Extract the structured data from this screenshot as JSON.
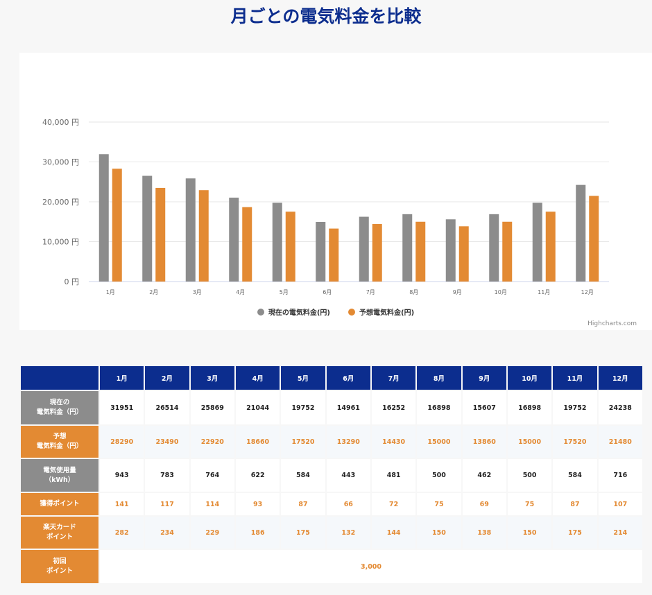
{
  "page": {
    "title": "月ごとの電気料金を比較"
  },
  "chart_data": {
    "type": "bar",
    "categories": [
      "1月",
      "2月",
      "3月",
      "4月",
      "5月",
      "6月",
      "7月",
      "8月",
      "9月",
      "10月",
      "11月",
      "12月"
    ],
    "series": [
      {
        "name": "現在の電気料金(円)",
        "color": "#8c8c8c",
        "values": [
          31951,
          26514,
          25869,
          21044,
          19752,
          14961,
          16252,
          16898,
          15607,
          16898,
          19752,
          24238
        ]
      },
      {
        "name": "予想電気料金(円)",
        "color": "#e38a33",
        "values": [
          28290,
          23490,
          22920,
          18660,
          17520,
          13290,
          14430,
          15000,
          13860,
          15000,
          17520,
          21480
        ]
      }
    ],
    "y_ticks": [
      "0 円",
      "10,000 円",
      "20,000 円",
      "30,000 円",
      "40,000 円"
    ],
    "ylim": [
      0,
      40000
    ],
    "grid": true,
    "legend_position": "bottom"
  },
  "credits": "Highcharts.com",
  "table": {
    "headers": [
      "1月",
      "2月",
      "3月",
      "4月",
      "5月",
      "6月",
      "7月",
      "8月",
      "9月",
      "10月",
      "11月",
      "12月"
    ],
    "rows": {
      "current": {
        "label_l1": "現在の",
        "label_l2": "電気料金（円）",
        "values": [
          "31951",
          "26514",
          "25869",
          "21044",
          "19752",
          "14961",
          "16252",
          "16898",
          "15607",
          "16898",
          "19752",
          "24238"
        ]
      },
      "forecast": {
        "label_l1": "予想",
        "label_l2": "電気料金（円）",
        "values": [
          "28290",
          "23490",
          "22920",
          "18660",
          "17520",
          "13290",
          "14430",
          "15000",
          "13860",
          "15000",
          "17520",
          "21480"
        ]
      },
      "usage": {
        "label_l1": "電気使用量",
        "label_l2": "（kWh）",
        "values": [
          "943",
          "783",
          "764",
          "622",
          "584",
          "443",
          "481",
          "500",
          "462",
          "500",
          "584",
          "716"
        ]
      },
      "points": {
        "label_l1": "獲得ポイント",
        "values": [
          "141",
          "117",
          "114",
          "93",
          "87",
          "66",
          "72",
          "75",
          "69",
          "75",
          "87",
          "107"
        ]
      },
      "card_points": {
        "label_l1": "楽天カード",
        "label_l2": "ポイント",
        "values": [
          "282",
          "234",
          "229",
          "186",
          "175",
          "132",
          "144",
          "150",
          "138",
          "150",
          "175",
          "214"
        ]
      },
      "initial": {
        "label_l1": "初回",
        "label_l2": "ポイント",
        "value": "3,000"
      }
    }
  }
}
